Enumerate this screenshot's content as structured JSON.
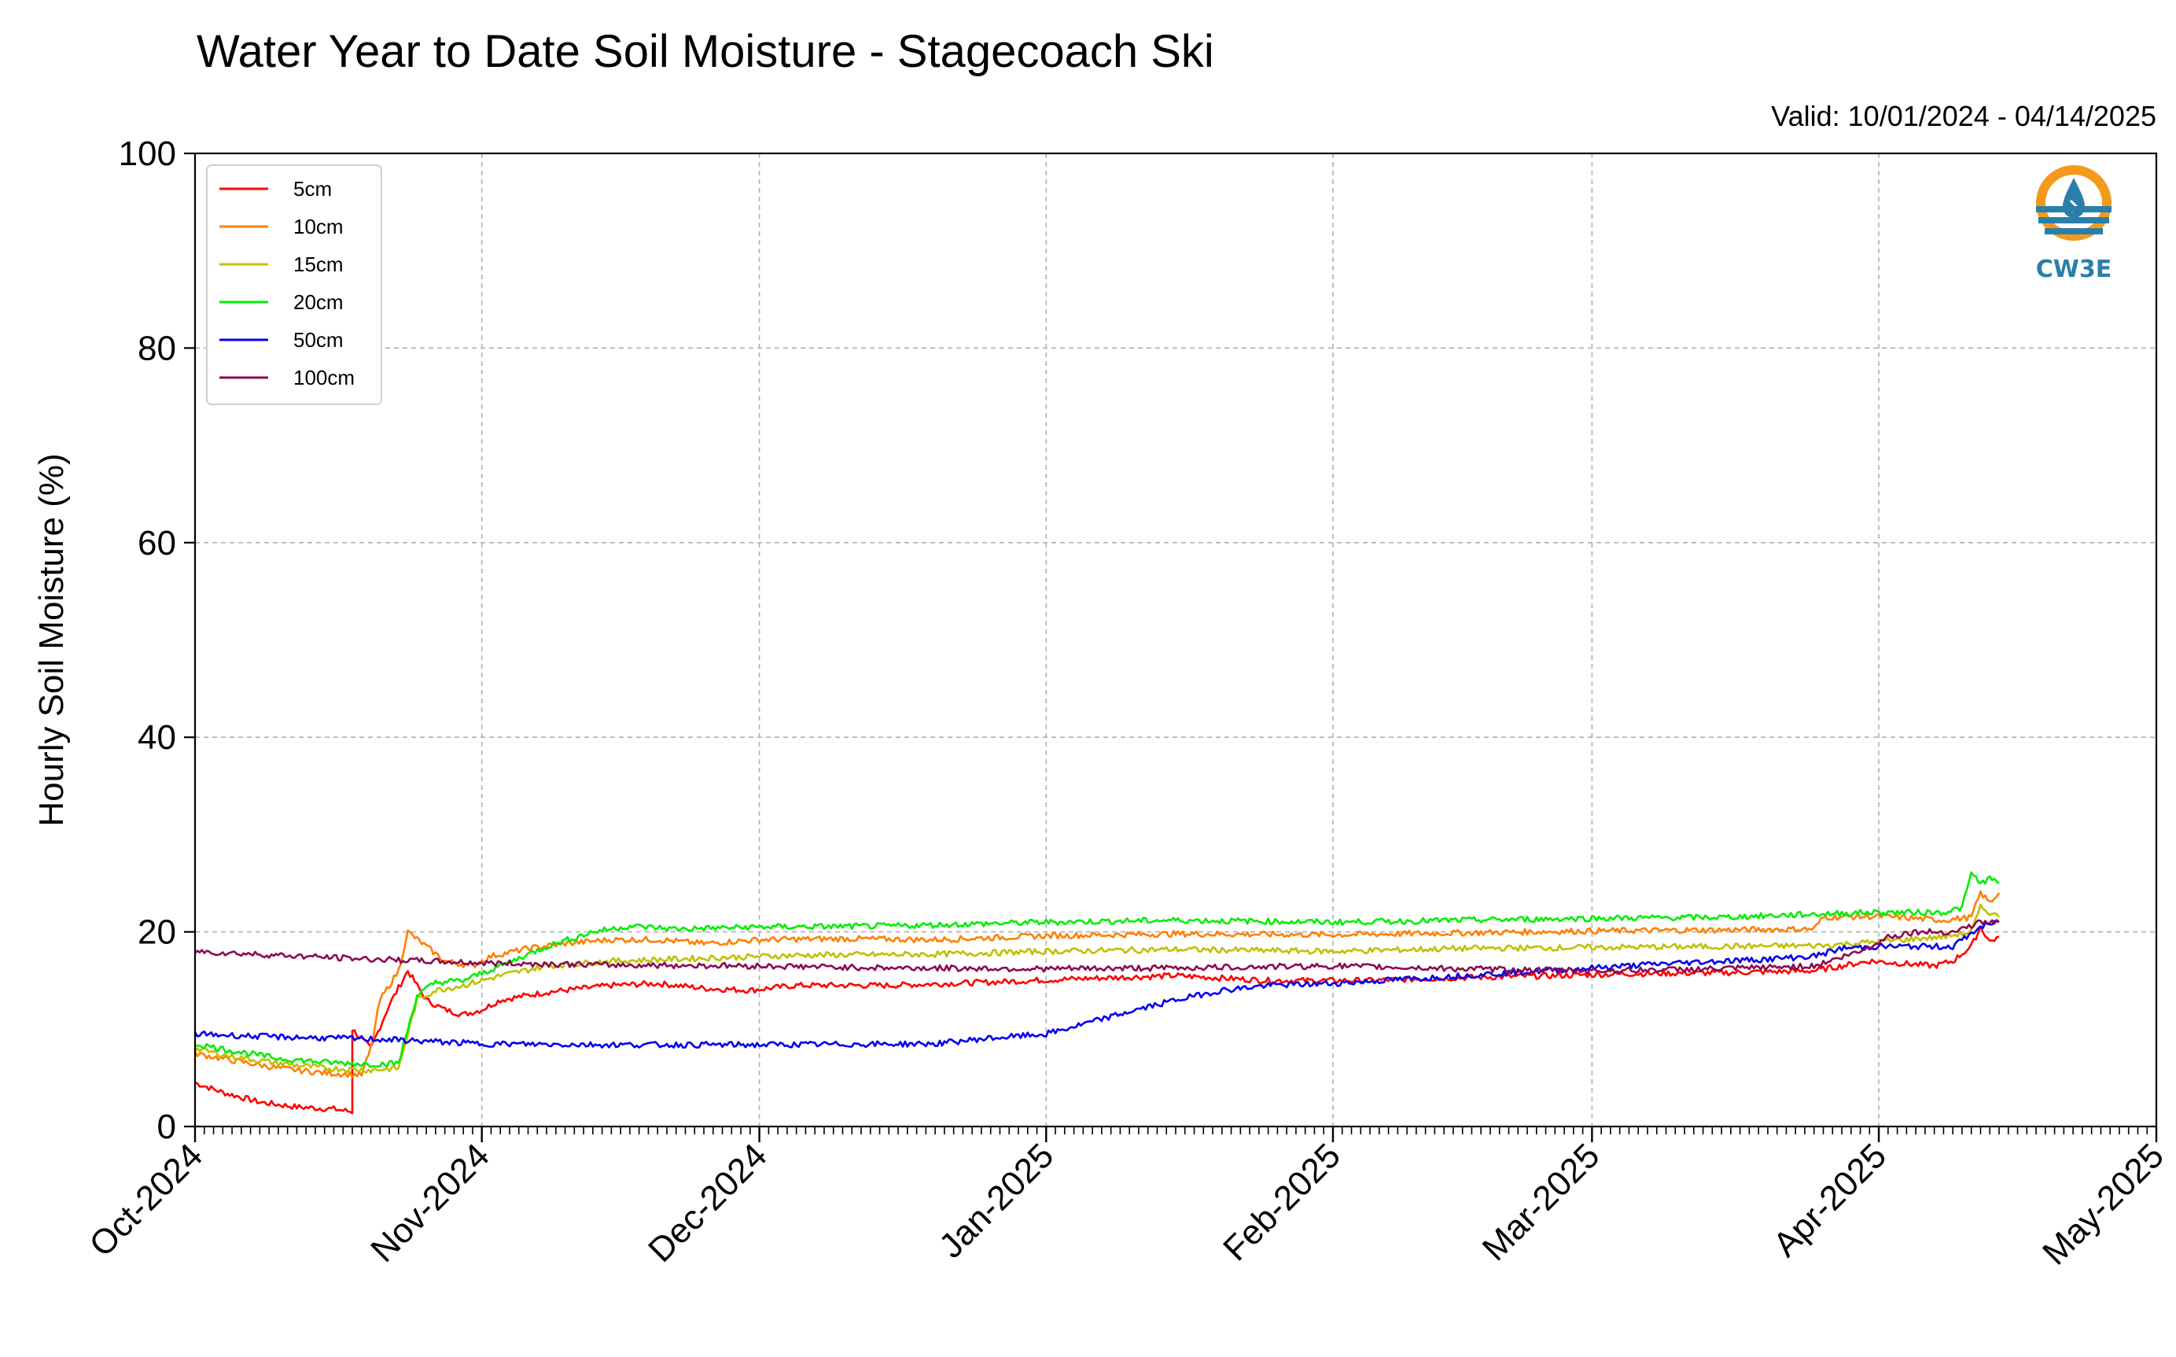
{
  "chart_data": {
    "type": "line",
    "title": "Water Year to Date Soil Moisture - Stagecoach Ski",
    "subtitle": "Valid: 10/01/2024 - 04/14/2025",
    "xlabel": "",
    "ylabel": "Hourly Soil Moisture (%)",
    "xlim": [
      "2024-10-01",
      "2025-05-01"
    ],
    "ylim": [
      0,
      100
    ],
    "yticks": [
      0,
      20,
      40,
      60,
      80,
      100
    ],
    "xticks": [
      {
        "date": "2024-10-01",
        "label": "Oct-2024"
      },
      {
        "date": "2024-11-01",
        "label": "Nov-2024"
      },
      {
        "date": "2024-12-01",
        "label": "Dec-2024"
      },
      {
        "date": "2025-01-01",
        "label": "Jan-2025"
      },
      {
        "date": "2025-02-01",
        "label": "Feb-2025"
      },
      {
        "date": "2025-03-01",
        "label": "Mar-2025"
      },
      {
        "date": "2025-04-01",
        "label": "Apr-2025"
      },
      {
        "date": "2025-05-01",
        "label": "May-2025"
      }
    ],
    "grid": true,
    "legend_position": "top-left",
    "series": [
      {
        "name": "5cm",
        "color": "#ff0000",
        "points": [
          [
            "2024-10-01",
            4.5
          ],
          [
            "2024-10-04",
            3.5
          ],
          [
            "2024-10-08",
            2.5
          ],
          [
            "2024-10-12",
            2.0
          ],
          [
            "2024-10-16",
            1.8
          ],
          [
            "2024-10-18",
            1.5
          ],
          [
            "2024-10-18",
            10.0
          ],
          [
            "2024-10-20",
            8.0
          ],
          [
            "2024-10-22",
            12.5
          ],
          [
            "2024-10-24",
            16.0
          ],
          [
            "2024-10-26",
            13.0
          ],
          [
            "2024-10-28",
            12.0
          ],
          [
            "2024-10-30",
            11.5
          ],
          [
            "2024-11-01",
            12.0
          ],
          [
            "2024-11-03",
            13.0
          ],
          [
            "2024-11-08",
            13.8
          ],
          [
            "2024-11-15",
            14.5
          ],
          [
            "2024-11-20",
            14.7
          ],
          [
            "2024-11-25",
            14.2
          ],
          [
            "2024-11-30",
            14.0
          ],
          [
            "2024-12-05",
            14.5
          ],
          [
            "2024-12-15",
            14.5
          ],
          [
            "2024-12-25",
            14.8
          ],
          [
            "2025-01-05",
            15.2
          ],
          [
            "2025-01-15",
            15.5
          ],
          [
            "2025-01-25",
            15.0
          ],
          [
            "2025-02-05",
            15.0
          ],
          [
            "2025-02-15",
            15.3
          ],
          [
            "2025-02-25",
            15.5
          ],
          [
            "2025-03-05",
            15.7
          ],
          [
            "2025-03-15",
            15.8
          ],
          [
            "2025-03-25",
            16.0
          ],
          [
            "2025-03-31",
            17.0
          ],
          [
            "2025-04-03",
            16.8
          ],
          [
            "2025-04-07",
            16.5
          ],
          [
            "2025-04-09",
            17.0
          ],
          [
            "2025-04-11",
            18.5
          ],
          [
            "2025-04-12",
            20.5
          ],
          [
            "2025-04-13",
            19.0
          ],
          [
            "2025-04-14",
            19.5
          ]
        ]
      },
      {
        "name": "10cm",
        "color": "#ff8000",
        "points": [
          [
            "2024-10-01",
            7.5
          ],
          [
            "2024-10-05",
            6.8
          ],
          [
            "2024-10-10",
            6.0
          ],
          [
            "2024-10-15",
            5.5
          ],
          [
            "2024-10-19",
            5.3
          ],
          [
            "2024-10-20",
            8.0
          ],
          [
            "2024-10-21",
            13.0
          ],
          [
            "2024-10-23",
            16.0
          ],
          [
            "2024-10-24",
            20.0
          ],
          [
            "2024-10-26",
            18.5
          ],
          [
            "2024-10-28",
            17.0
          ],
          [
            "2024-10-31",
            16.5
          ],
          [
            "2024-11-02",
            17.5
          ],
          [
            "2024-11-06",
            18.3
          ],
          [
            "2024-11-10",
            18.8
          ],
          [
            "2024-11-15",
            19.2
          ],
          [
            "2024-11-20",
            19.2
          ],
          [
            "2024-11-25",
            18.8
          ],
          [
            "2024-12-01",
            19.2
          ],
          [
            "2024-12-10",
            19.3
          ],
          [
            "2024-12-20",
            19.2
          ],
          [
            "2025-01-01",
            19.6
          ],
          [
            "2025-01-15",
            19.8
          ],
          [
            "2025-02-01",
            19.7
          ],
          [
            "2025-02-15",
            19.9
          ],
          [
            "2025-03-01",
            20.1
          ],
          [
            "2025-03-15",
            20.2
          ],
          [
            "2025-03-25",
            20.3
          ],
          [
            "2025-03-26",
            21.5
          ],
          [
            "2025-04-01",
            21.6
          ],
          [
            "2025-04-08",
            21.2
          ],
          [
            "2025-04-11",
            21.5
          ],
          [
            "2025-04-12",
            24.0
          ],
          [
            "2025-04-13",
            23.0
          ],
          [
            "2025-04-14",
            24.0
          ]
        ]
      },
      {
        "name": "15cm",
        "color": "#c0c000",
        "points": [
          [
            "2024-10-01",
            8.0
          ],
          [
            "2024-10-05",
            7.2
          ],
          [
            "2024-10-10",
            6.5
          ],
          [
            "2024-10-15",
            6.0
          ],
          [
            "2024-10-20",
            5.8
          ],
          [
            "2024-10-23",
            6.0
          ],
          [
            "2024-10-25",
            13.0
          ],
          [
            "2024-10-27",
            14.0
          ],
          [
            "2024-10-30",
            14.5
          ],
          [
            "2024-11-03",
            15.5
          ],
          [
            "2024-11-08",
            16.5
          ],
          [
            "2024-11-15",
            17.0
          ],
          [
            "2024-11-25",
            17.3
          ],
          [
            "2024-12-05",
            17.6
          ],
          [
            "2024-12-20",
            17.7
          ],
          [
            "2025-01-01",
            18.0
          ],
          [
            "2025-01-15",
            18.2
          ],
          [
            "2025-02-01",
            18.0
          ],
          [
            "2025-02-15",
            18.3
          ],
          [
            "2025-03-01",
            18.4
          ],
          [
            "2025-03-15",
            18.5
          ],
          [
            "2025-03-26",
            18.6
          ],
          [
            "2025-04-01",
            19.0
          ],
          [
            "2025-04-08",
            19.5
          ],
          [
            "2025-04-11",
            20.0
          ],
          [
            "2025-04-12",
            22.5
          ],
          [
            "2025-04-14",
            21.5
          ]
        ]
      },
      {
        "name": "20cm",
        "color": "#00ee00",
        "points": [
          [
            "2024-10-01",
            8.5
          ],
          [
            "2024-10-05",
            7.8
          ],
          [
            "2024-10-10",
            7.0
          ],
          [
            "2024-10-15",
            6.6
          ],
          [
            "2024-10-20",
            6.4
          ],
          [
            "2024-10-23",
            6.5
          ],
          [
            "2024-10-25",
            13.5
          ],
          [
            "2024-10-27",
            14.8
          ],
          [
            "2024-10-30",
            15.0
          ],
          [
            "2024-11-03",
            16.5
          ],
          [
            "2024-11-08",
            18.5
          ],
          [
            "2024-11-13",
            20.0
          ],
          [
            "2024-11-17",
            20.6
          ],
          [
            "2024-11-22",
            20.3
          ],
          [
            "2024-12-01",
            20.5
          ],
          [
            "2024-12-15",
            20.6
          ],
          [
            "2025-01-01",
            21.0
          ],
          [
            "2025-01-15",
            21.2
          ],
          [
            "2025-02-01",
            21.0
          ],
          [
            "2025-02-15",
            21.2
          ],
          [
            "2025-03-01",
            21.4
          ],
          [
            "2025-03-15",
            21.5
          ],
          [
            "2025-03-31",
            22.0
          ],
          [
            "2025-04-08",
            22.0
          ],
          [
            "2025-04-10",
            22.5
          ],
          [
            "2025-04-11",
            26.0
          ],
          [
            "2025-04-12",
            25.0
          ],
          [
            "2025-04-13",
            25.5
          ],
          [
            "2025-04-14",
            25.0
          ]
        ]
      },
      {
        "name": "50cm",
        "color": "#0000ee",
        "points": [
          [
            "2024-10-01",
            9.5
          ],
          [
            "2024-10-10",
            9.2
          ],
          [
            "2024-10-20",
            9.0
          ],
          [
            "2024-10-25",
            8.8
          ],
          [
            "2024-11-01",
            8.5
          ],
          [
            "2024-11-15",
            8.4
          ],
          [
            "2024-12-01",
            8.4
          ],
          [
            "2024-12-20",
            8.5
          ],
          [
            "2024-12-25",
            9.0
          ],
          [
            "2025-01-01",
            9.5
          ],
          [
            "2025-01-05",
            10.5
          ],
          [
            "2025-01-10",
            11.8
          ],
          [
            "2025-01-15",
            13.0
          ],
          [
            "2025-01-20",
            14.0
          ],
          [
            "2025-01-25",
            14.5
          ],
          [
            "2025-02-01",
            14.7
          ],
          [
            "2025-02-10",
            15.2
          ],
          [
            "2025-02-20",
            15.8
          ],
          [
            "2025-03-01",
            16.3
          ],
          [
            "2025-03-10",
            16.8
          ],
          [
            "2025-03-20",
            17.2
          ],
          [
            "2025-03-25",
            17.5
          ],
          [
            "2025-03-28",
            18.3
          ],
          [
            "2025-04-01",
            18.5
          ],
          [
            "2025-04-09",
            18.5
          ],
          [
            "2025-04-12",
            20.5
          ],
          [
            "2025-04-14",
            21.0
          ]
        ]
      },
      {
        "name": "100cm",
        "color": "#8b0a50",
        "points": [
          [
            "2024-10-01",
            18.0
          ],
          [
            "2024-10-10",
            17.6
          ],
          [
            "2024-10-20",
            17.2
          ],
          [
            "2024-11-01",
            16.8
          ],
          [
            "2024-11-15",
            16.6
          ],
          [
            "2024-12-01",
            16.5
          ],
          [
            "2024-12-15",
            16.3
          ],
          [
            "2025-01-01",
            16.2
          ],
          [
            "2025-01-15",
            16.3
          ],
          [
            "2025-02-01",
            16.5
          ],
          [
            "2025-02-15",
            16.2
          ],
          [
            "2025-03-01",
            16.0
          ],
          [
            "2025-03-15",
            16.2
          ],
          [
            "2025-03-25",
            16.5
          ],
          [
            "2025-03-30",
            18.0
          ],
          [
            "2025-04-02",
            19.5
          ],
          [
            "2025-04-05",
            20.0
          ],
          [
            "2025-04-09",
            20.0
          ],
          [
            "2025-04-12",
            21.0
          ],
          [
            "2025-04-14",
            21.0
          ]
        ]
      }
    ]
  },
  "logo": {
    "text": "CW3E",
    "ring_color": "#f39a1e",
    "wave_color": "#2a7fa8"
  }
}
